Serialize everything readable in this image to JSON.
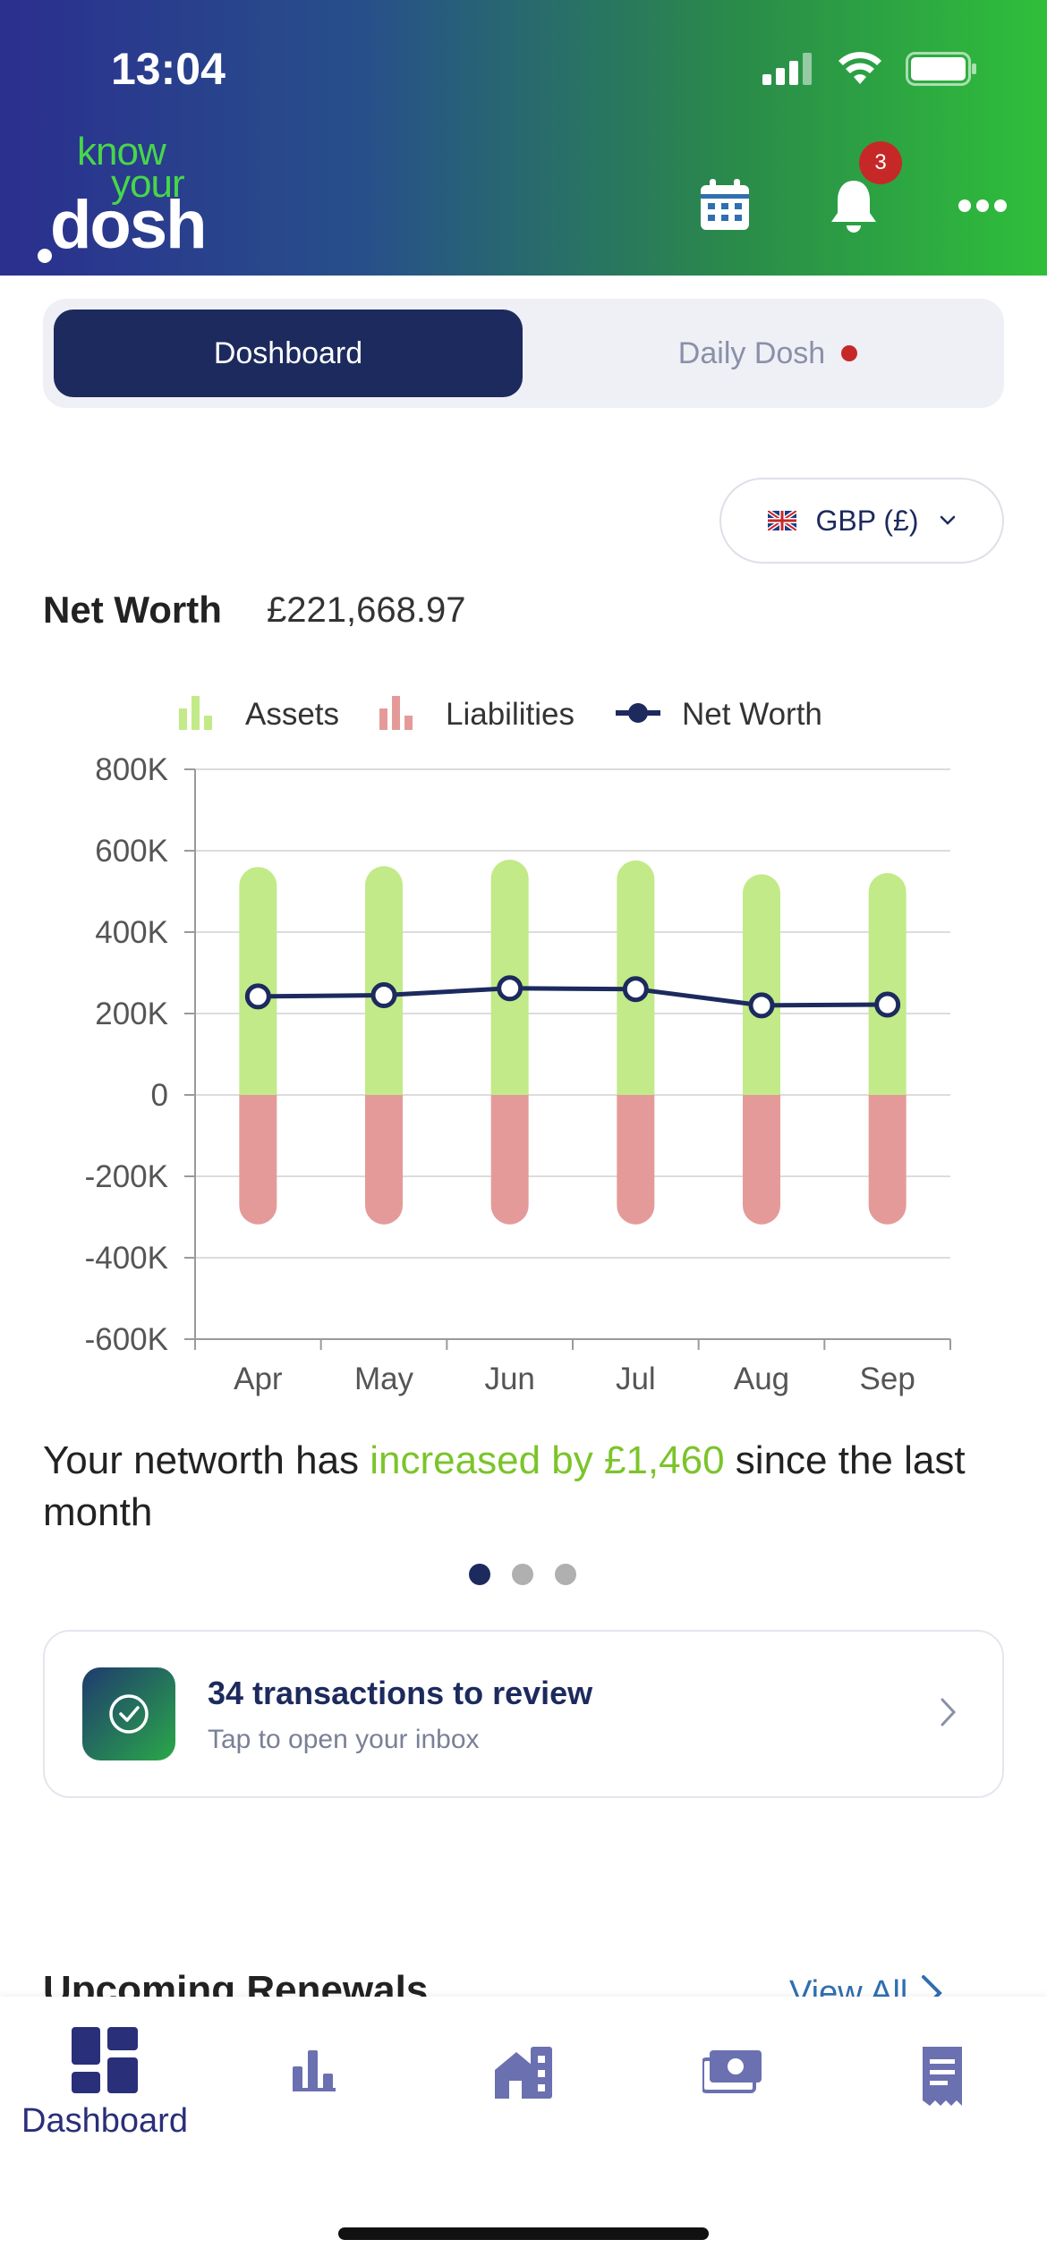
{
  "status_bar": {
    "time": "13:04"
  },
  "brand": {
    "line1": "know",
    "line2": "your",
    "line3": "dosh"
  },
  "header": {
    "notification_count": "3"
  },
  "tabs": {
    "active": "Dosh​board",
    "inactive": "Daily Dosh"
  },
  "currency": {
    "label": "GBP (£)"
  },
  "net_worth": {
    "label": "Net Worth",
    "value": "£221,668.97"
  },
  "chart_data": {
    "type": "bar",
    "categories": [
      "Apr",
      "May",
      "Jun",
      "Jul",
      "Aug",
      "Sep"
    ],
    "series": [
      {
        "name": "Assets",
        "kind": "bar",
        "color": "#c2ea88",
        "values": [
          560000,
          562000,
          578000,
          576000,
          542000,
          545000
        ]
      },
      {
        "name": "Liabilities",
        "kind": "bar",
        "color": "#e59a9a",
        "values": [
          -318000,
          -318000,
          -318000,
          -318000,
          -318000,
          -318000
        ]
      },
      {
        "name": "Net Worth",
        "kind": "line",
        "color": "#1c2a5e",
        "values": [
          242000,
          245000,
          262000,
          260000,
          220000,
          222000
        ]
      }
    ],
    "ylim": [
      -600000,
      800000
    ],
    "yticks": [
      "800K",
      "600K",
      "400K",
      "200K",
      "0",
      "-200K",
      "-400K",
      "-600K"
    ],
    "legend": [
      "Assets",
      "Liabilities",
      "Net Worth"
    ],
    "legend_position": "top",
    "grid": true
  },
  "summary": {
    "prefix": "Your networth has ",
    "highlight": "increased by £1,460",
    "suffix": " since the last month"
  },
  "review_card": {
    "title": "34 transactions to review",
    "subtitle": "Tap to open your inbox"
  },
  "renewals": {
    "title": "Upcoming Renewals",
    "view_all": "View All"
  },
  "bottom_nav": {
    "active_label": "Dashboard"
  },
  "icons": [
    "signal-icon",
    "wifi-icon",
    "battery-icon",
    "calendar-icon",
    "bell-icon",
    "more-icon",
    "flag-uk-icon",
    "chevron-down-icon",
    "check-circle-icon",
    "chevron-right-icon",
    "dashboard-icon",
    "bar-chart-icon",
    "property-icon",
    "cash-icon",
    "receipt-icon"
  ]
}
